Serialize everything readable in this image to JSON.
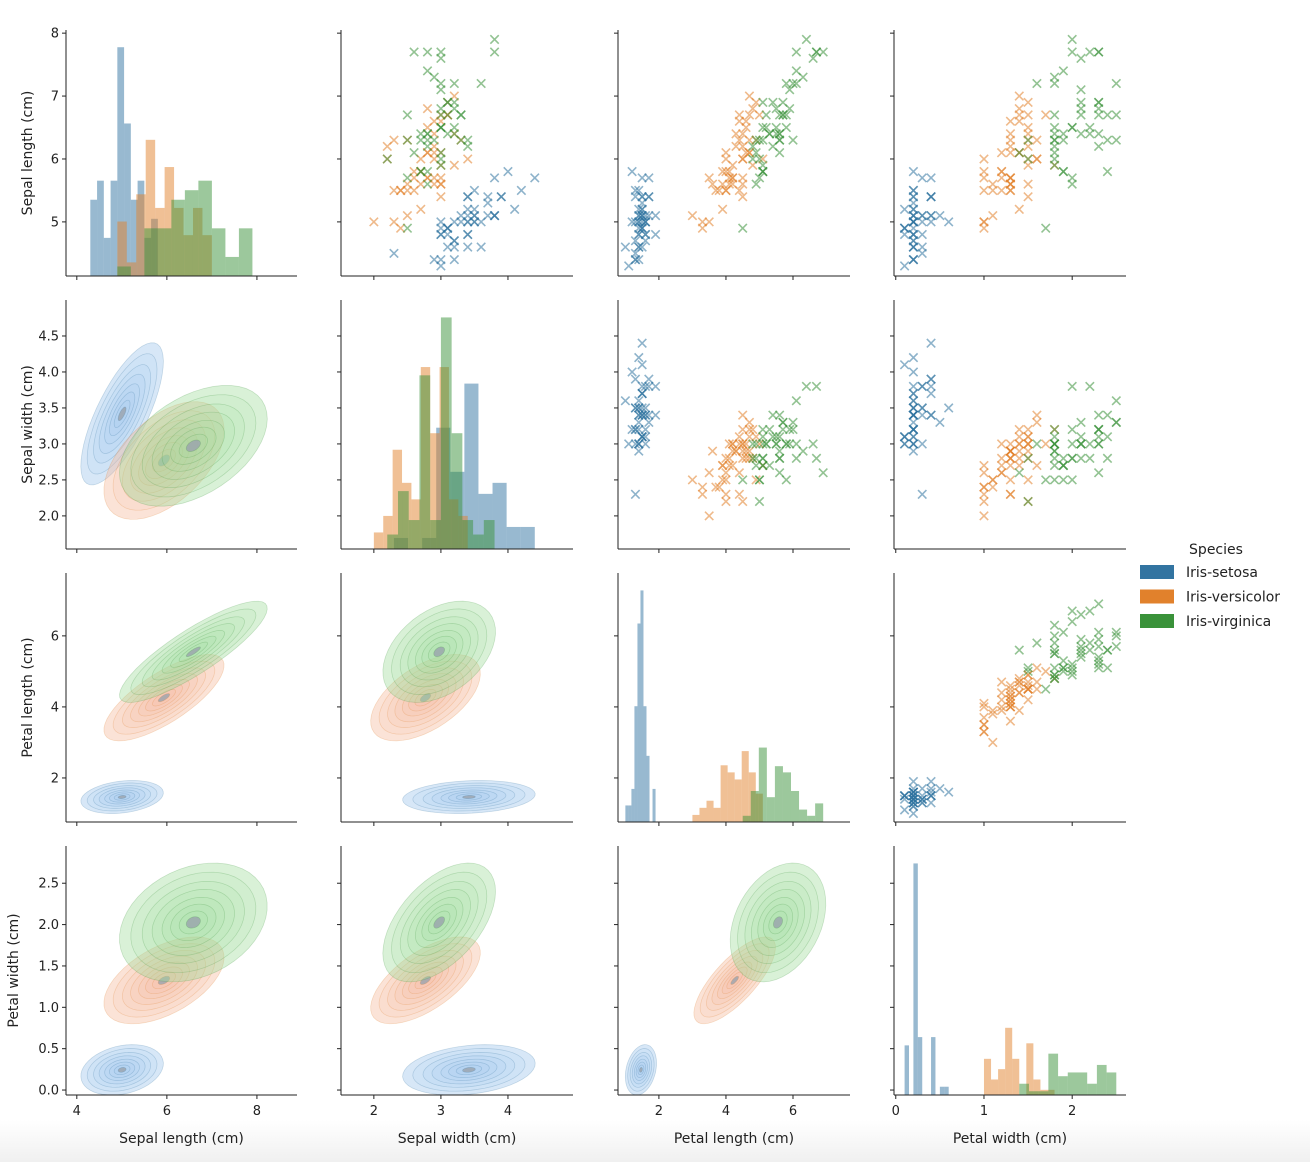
{
  "chart_data": {
    "type": "pairplot",
    "diagonal": "histogram",
    "upper": "scatter (x markers)",
    "lower": "kde",
    "grid": false,
    "legend": {
      "title": "Species",
      "placement": "right"
    },
    "variables": [
      {
        "label": "Sepal length (cm)",
        "ticks": [
          4,
          6,
          8
        ],
        "row_ticks": [
          5,
          6,
          7,
          8
        ],
        "lim": [
          3.76,
          8.89
        ],
        "row_lim": [
          4.14,
          8.05
        ]
      },
      {
        "label": "Sepal width (cm)",
        "ticks": [
          2,
          3,
          4
        ],
        "row_ticks": [
          "2.0",
          "2.5",
          "3.0",
          "3.5",
          "4.0",
          "4.5"
        ],
        "lim": [
          1.51,
          4.97
        ],
        "row_lim": [
          1.54,
          5.0
        ]
      },
      {
        "label": "Petal length (cm)",
        "ticks": [
          2,
          4,
          6
        ],
        "row_ticks": [
          2,
          4,
          6
        ],
        "lim": [
          0.78,
          7.7
        ],
        "row_lim": [
          0.76,
          7.77
        ]
      },
      {
        "label": "Petal width (cm)",
        "ticks": [
          0,
          1,
          2
        ],
        "row_ticks": [
          "0.0",
          "0.5",
          "1.0",
          "1.5",
          "2.0",
          "2.5"
        ],
        "lim": [
          -0.02,
          2.61
        ],
        "row_lim": [
          -0.06,
          2.95
        ]
      }
    ],
    "series": [
      {
        "name": "Iris-setosa",
        "color": "#3274a1",
        "points": [
          [
            5.1,
            3.5,
            1.4,
            0.2
          ],
          [
            4.9,
            3.0,
            1.4,
            0.2
          ],
          [
            4.7,
            3.2,
            1.3,
            0.2
          ],
          [
            4.6,
            3.1,
            1.5,
            0.2
          ],
          [
            5.0,
            3.6,
            1.4,
            0.2
          ],
          [
            5.4,
            3.9,
            1.7,
            0.4
          ],
          [
            4.6,
            3.4,
            1.4,
            0.3
          ],
          [
            5.0,
            3.4,
            1.5,
            0.2
          ],
          [
            4.4,
            2.9,
            1.4,
            0.2
          ],
          [
            4.9,
            3.1,
            1.5,
            0.1
          ],
          [
            5.4,
            3.7,
            1.5,
            0.2
          ],
          [
            4.8,
            3.4,
            1.6,
            0.2
          ],
          [
            4.8,
            3.0,
            1.4,
            0.1
          ],
          [
            4.3,
            3.0,
            1.1,
            0.1
          ],
          [
            5.8,
            4.0,
            1.2,
            0.2
          ],
          [
            5.7,
            4.4,
            1.5,
            0.4
          ],
          [
            5.4,
            3.9,
            1.3,
            0.4
          ],
          [
            5.1,
            3.5,
            1.4,
            0.3
          ],
          [
            5.7,
            3.8,
            1.7,
            0.3
          ],
          [
            5.1,
            3.8,
            1.5,
            0.3
          ],
          [
            5.4,
            3.4,
            1.7,
            0.2
          ],
          [
            5.1,
            3.7,
            1.5,
            0.4
          ],
          [
            4.6,
            3.6,
            1.0,
            0.2
          ],
          [
            5.1,
            3.3,
            1.7,
            0.5
          ],
          [
            4.8,
            3.4,
            1.9,
            0.2
          ],
          [
            5.0,
            3.0,
            1.6,
            0.2
          ],
          [
            5.0,
            3.4,
            1.6,
            0.4
          ],
          [
            5.2,
            3.5,
            1.5,
            0.2
          ],
          [
            5.2,
            3.4,
            1.4,
            0.2
          ],
          [
            4.7,
            3.2,
            1.6,
            0.2
          ],
          [
            4.8,
            3.1,
            1.6,
            0.2
          ],
          [
            5.4,
            3.4,
            1.5,
            0.4
          ],
          [
            5.2,
            4.1,
            1.5,
            0.1
          ],
          [
            5.5,
            4.2,
            1.4,
            0.2
          ],
          [
            4.9,
            3.1,
            1.5,
            0.1
          ],
          [
            5.0,
            3.2,
            1.2,
            0.2
          ],
          [
            5.5,
            3.5,
            1.3,
            0.2
          ],
          [
            4.9,
            3.1,
            1.5,
            0.1
          ],
          [
            4.4,
            3.0,
            1.3,
            0.2
          ],
          [
            5.1,
            3.4,
            1.5,
            0.2
          ],
          [
            5.0,
            3.5,
            1.3,
            0.3
          ],
          [
            4.5,
            2.3,
            1.3,
            0.3
          ],
          [
            4.4,
            3.2,
            1.3,
            0.2
          ],
          [
            5.0,
            3.5,
            1.6,
            0.6
          ],
          [
            5.1,
            3.8,
            1.9,
            0.4
          ],
          [
            4.8,
            3.0,
            1.4,
            0.3
          ],
          [
            5.1,
            3.8,
            1.6,
            0.2
          ],
          [
            4.6,
            3.2,
            1.4,
            0.2
          ],
          [
            5.3,
            3.7,
            1.5,
            0.2
          ],
          [
            5.0,
            3.3,
            1.4,
            0.2
          ]
        ]
      },
      {
        "name": "Iris-versicolor",
        "color": "#e1812c",
        "points": [
          [
            7.0,
            3.2,
            4.7,
            1.4
          ],
          [
            6.4,
            3.2,
            4.5,
            1.5
          ],
          [
            6.9,
            3.1,
            4.9,
            1.5
          ],
          [
            5.5,
            2.3,
            4.0,
            1.3
          ],
          [
            6.5,
            2.8,
            4.6,
            1.5
          ],
          [
            5.7,
            2.8,
            4.5,
            1.3
          ],
          [
            6.3,
            3.3,
            4.7,
            1.6
          ],
          [
            4.9,
            2.4,
            3.3,
            1.0
          ],
          [
            6.6,
            2.9,
            4.6,
            1.3
          ],
          [
            5.2,
            2.7,
            3.9,
            1.4
          ],
          [
            5.0,
            2.0,
            3.5,
            1.0
          ],
          [
            5.9,
            3.0,
            4.2,
            1.5
          ],
          [
            6.0,
            2.2,
            4.0,
            1.0
          ],
          [
            6.1,
            2.9,
            4.7,
            1.4
          ],
          [
            5.6,
            2.9,
            3.6,
            1.3
          ],
          [
            6.7,
            3.1,
            4.4,
            1.4
          ],
          [
            5.6,
            3.0,
            4.5,
            1.5
          ],
          [
            5.8,
            2.7,
            4.1,
            1.0
          ],
          [
            6.2,
            2.2,
            4.5,
            1.5
          ],
          [
            5.6,
            2.5,
            3.9,
            1.1
          ],
          [
            5.9,
            3.2,
            4.8,
            1.8
          ],
          [
            6.1,
            2.8,
            4.0,
            1.3
          ],
          [
            6.3,
            2.5,
            4.9,
            1.5
          ],
          [
            6.1,
            2.8,
            4.7,
            1.2
          ],
          [
            6.4,
            2.9,
            4.3,
            1.3
          ],
          [
            6.6,
            3.0,
            4.4,
            1.4
          ],
          [
            6.8,
            2.8,
            4.8,
            1.4
          ],
          [
            6.7,
            3.0,
            5.0,
            1.7
          ],
          [
            6.0,
            2.9,
            4.5,
            1.5
          ],
          [
            5.7,
            2.6,
            3.5,
            1.0
          ],
          [
            5.5,
            2.4,
            3.8,
            1.1
          ],
          [
            5.5,
            2.4,
            3.7,
            1.0
          ],
          [
            5.8,
            2.7,
            3.9,
            1.2
          ],
          [
            6.0,
            2.7,
            5.1,
            1.6
          ],
          [
            5.4,
            3.0,
            4.5,
            1.5
          ],
          [
            6.0,
            3.4,
            4.5,
            1.6
          ],
          [
            6.7,
            3.1,
            4.7,
            1.5
          ],
          [
            6.3,
            2.3,
            4.4,
            1.3
          ],
          [
            5.6,
            3.0,
            4.1,
            1.3
          ],
          [
            5.5,
            2.5,
            4.0,
            1.3
          ],
          [
            5.5,
            2.6,
            4.4,
            1.2
          ],
          [
            6.1,
            3.0,
            4.6,
            1.4
          ],
          [
            5.8,
            2.6,
            4.0,
            1.2
          ],
          [
            5.0,
            2.3,
            3.3,
            1.0
          ],
          [
            5.6,
            2.7,
            4.2,
            1.3
          ],
          [
            5.7,
            3.0,
            4.2,
            1.2
          ],
          [
            5.7,
            2.9,
            4.2,
            1.3
          ],
          [
            6.2,
            2.9,
            4.3,
            1.3
          ],
          [
            5.1,
            2.5,
            3.0,
            1.1
          ],
          [
            5.7,
            2.8,
            4.1,
            1.3
          ]
        ]
      },
      {
        "name": "Iris-virginica",
        "color": "#3a923a",
        "points": [
          [
            6.3,
            3.3,
            6.0,
            2.5
          ],
          [
            5.8,
            2.7,
            5.1,
            1.9
          ],
          [
            7.1,
            3.0,
            5.9,
            2.1
          ],
          [
            6.3,
            2.9,
            5.6,
            1.8
          ],
          [
            6.5,
            3.0,
            5.8,
            2.2
          ],
          [
            7.6,
            3.0,
            6.6,
            2.1
          ],
          [
            4.9,
            2.5,
            4.5,
            1.7
          ],
          [
            7.3,
            2.9,
            6.3,
            1.8
          ],
          [
            6.7,
            2.5,
            5.8,
            1.8
          ],
          [
            7.2,
            3.6,
            6.1,
            2.5
          ],
          [
            6.5,
            3.2,
            5.1,
            2.0
          ],
          [
            6.4,
            2.7,
            5.3,
            1.9
          ],
          [
            6.8,
            3.0,
            5.5,
            2.1
          ],
          [
            5.7,
            2.5,
            5.0,
            2.0
          ],
          [
            5.8,
            2.8,
            5.1,
            2.4
          ],
          [
            6.4,
            3.2,
            5.3,
            2.3
          ],
          [
            6.5,
            3.0,
            5.5,
            1.8
          ],
          [
            7.7,
            3.8,
            6.7,
            2.2
          ],
          [
            7.7,
            2.6,
            6.9,
            2.3
          ],
          [
            6.0,
            2.2,
            5.0,
            1.5
          ],
          [
            6.9,
            3.2,
            5.7,
            2.3
          ],
          [
            5.6,
            2.8,
            4.9,
            2.0
          ],
          [
            7.7,
            2.8,
            6.7,
            2.0
          ],
          [
            6.3,
            2.7,
            4.9,
            1.8
          ],
          [
            6.7,
            3.3,
            5.7,
            2.1
          ],
          [
            7.2,
            3.2,
            6.0,
            1.8
          ],
          [
            6.2,
            2.8,
            4.8,
            1.8
          ],
          [
            6.1,
            3.0,
            4.9,
            1.8
          ],
          [
            6.4,
            2.8,
            5.6,
            2.1
          ],
          [
            7.2,
            3.0,
            5.8,
            1.6
          ],
          [
            7.4,
            2.8,
            6.1,
            1.9
          ],
          [
            7.9,
            3.8,
            6.4,
            2.0
          ],
          [
            6.4,
            2.8,
            5.6,
            2.2
          ],
          [
            6.3,
            2.8,
            5.1,
            1.5
          ],
          [
            6.1,
            2.6,
            5.6,
            1.4
          ],
          [
            7.7,
            3.0,
            6.1,
            2.3
          ],
          [
            6.3,
            3.4,
            5.6,
            2.4
          ],
          [
            6.4,
            3.1,
            5.5,
            1.8
          ],
          [
            6.0,
            3.0,
            4.8,
            1.8
          ],
          [
            6.9,
            3.1,
            5.4,
            2.1
          ],
          [
            6.7,
            3.1,
            5.6,
            2.4
          ],
          [
            6.9,
            3.1,
            5.1,
            2.3
          ],
          [
            5.8,
            2.7,
            5.1,
            1.9
          ],
          [
            6.8,
            3.2,
            5.9,
            2.3
          ],
          [
            6.7,
            3.3,
            5.7,
            2.5
          ],
          [
            6.7,
            3.0,
            5.2,
            2.3
          ],
          [
            6.3,
            2.5,
            5.0,
            1.9
          ],
          [
            6.5,
            3.0,
            5.2,
            2.0
          ],
          [
            6.2,
            3.4,
            5.4,
            2.3
          ],
          [
            5.9,
            3.0,
            5.1,
            1.8
          ]
        ]
      }
    ],
    "kde_fill_colors": [
      "#9cc3ec",
      "#f4b89a",
      "#9fdb9a"
    ]
  }
}
